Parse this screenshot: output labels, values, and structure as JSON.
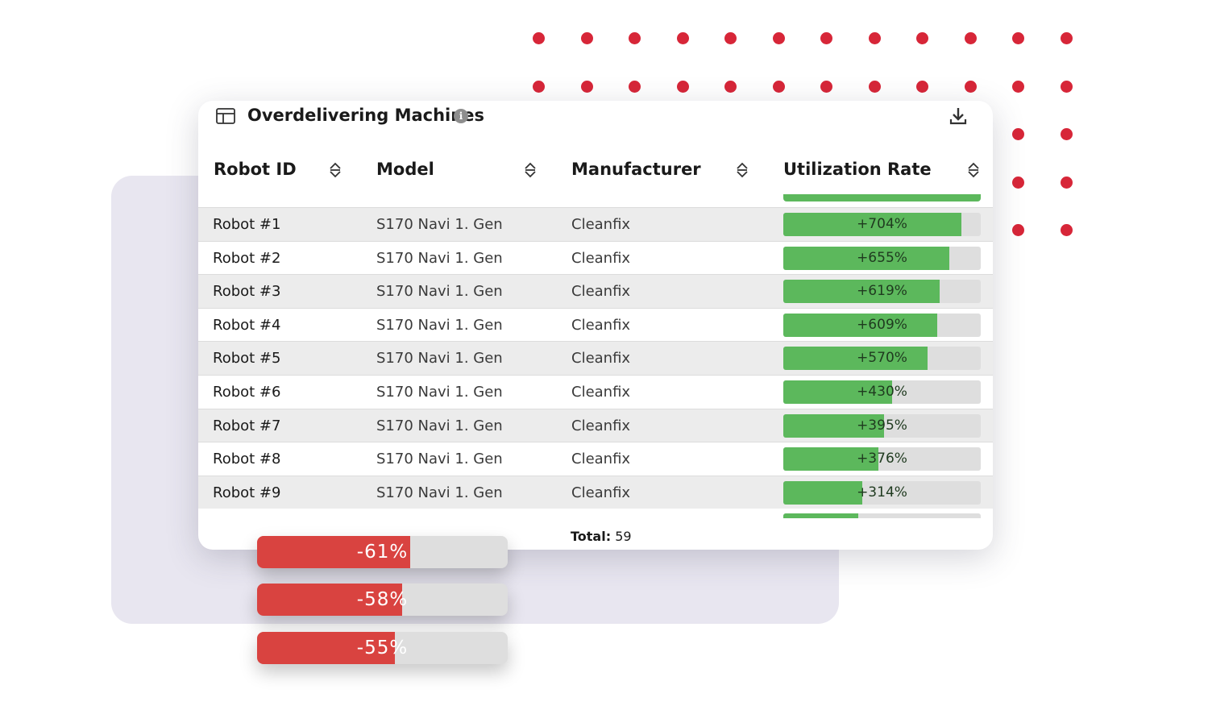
{
  "colors": {
    "accent_red": "#d72638",
    "bar_green": "#5cb85c",
    "bar_red": "#d94340",
    "panel_bg": "#e8e6f0"
  },
  "card": {
    "title": "Overdelivering Machines",
    "title_icon": "table-icon",
    "info_icon": "info-icon",
    "info_glyph": "i",
    "download_icon": "download-icon"
  },
  "table": {
    "columns": [
      {
        "label": "Robot ID",
        "sort_icon": "sort-icon"
      },
      {
        "label": "Model",
        "sort_icon": "sort-icon"
      },
      {
        "label": "Manufacturer",
        "sort_icon": "sort-icon"
      },
      {
        "label": "Utilization Rate",
        "sort_icon": "sort-icon"
      }
    ],
    "rows": [
      {
        "robot_id": "Robot #1",
        "model": "S170 Navi 1. Gen",
        "manufacturer": "Cleanfix",
        "rate": "+704%",
        "fill": 0.9
      },
      {
        "robot_id": "Robot #2",
        "model": "S170 Navi 1. Gen",
        "manufacturer": "Cleanfix",
        "rate": "+655%",
        "fill": 0.84
      },
      {
        "robot_id": "Robot #3",
        "model": "S170 Navi 1. Gen",
        "manufacturer": "Cleanfix",
        "rate": "+619%",
        "fill": 0.79
      },
      {
        "robot_id": "Robot #4",
        "model": "S170 Navi 1. Gen",
        "manufacturer": "Cleanfix",
        "rate": "+609%",
        "fill": 0.78
      },
      {
        "robot_id": "Robot #5",
        "model": "S170 Navi 1. Gen",
        "manufacturer": "Cleanfix",
        "rate": "+570%",
        "fill": 0.73
      },
      {
        "robot_id": "Robot #6",
        "model": "S170 Navi 1. Gen",
        "manufacturer": "Cleanfix",
        "rate": "+430%",
        "fill": 0.55
      },
      {
        "robot_id": "Robot #7",
        "model": "S170 Navi 1. Gen",
        "manufacturer": "Cleanfix",
        "rate": "+395%",
        "fill": 0.51
      },
      {
        "robot_id": "Robot #8",
        "model": "S170 Navi 1. Gen",
        "manufacturer": "Cleanfix",
        "rate": "+376%",
        "fill": 0.48
      },
      {
        "robot_id": "Robot #9",
        "model": "S170 Navi 1. Gen",
        "manufacturer": "Cleanfix",
        "rate": "+314%",
        "fill": 0.4
      }
    ],
    "total_label": "Total:",
    "total_value": "59"
  },
  "underperforming_bars": [
    {
      "label": "-61%",
      "fill": 0.61
    },
    {
      "label": "-58%",
      "fill": 0.58
    },
    {
      "label": "-55%",
      "fill": 0.55
    }
  ]
}
